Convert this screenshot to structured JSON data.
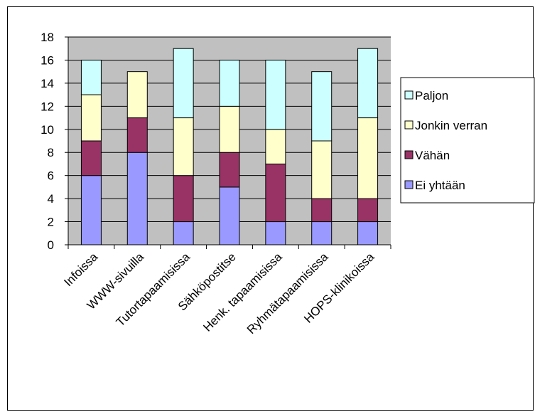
{
  "chart_data": {
    "type": "bar",
    "stacked": true,
    "categories": [
      "Infoissa",
      "WWW-sivuilla",
      "Tutortapaamisissa",
      "Sähköpostitse",
      "Henk. tapaamisissa",
      "Ryhmätapaamisissa",
      "HOPS-klinikoissa"
    ],
    "series": [
      {
        "name": "Ei yhtään",
        "color": "#9999FF",
        "values": [
          6,
          8,
          2,
          5,
          2,
          2,
          2
        ]
      },
      {
        "name": "Vähän",
        "color": "#993366",
        "values": [
          3,
          3,
          4,
          3,
          5,
          2,
          2
        ]
      },
      {
        "name": "Jonkin verran",
        "color": "#FFFFCC",
        "values": [
          4,
          4,
          5,
          4,
          3,
          5,
          7
        ]
      },
      {
        "name": "Paljon",
        "color": "#CCFFFF",
        "values": [
          3,
          0,
          6,
          4,
          6,
          6,
          6
        ]
      }
    ],
    "legend_order": [
      "Paljon",
      "Jonkin verran",
      "Vähän",
      "Ei yhtään"
    ],
    "ylim": [
      0,
      18
    ],
    "yticks": [
      "0",
      "2",
      "4",
      "6",
      "8",
      "10",
      "12",
      "14",
      "16",
      "18"
    ],
    "grid": true,
    "plot_background": "#C0C0C0",
    "legend_position": "right",
    "title": "",
    "xlabel": "",
    "ylabel": ""
  }
}
